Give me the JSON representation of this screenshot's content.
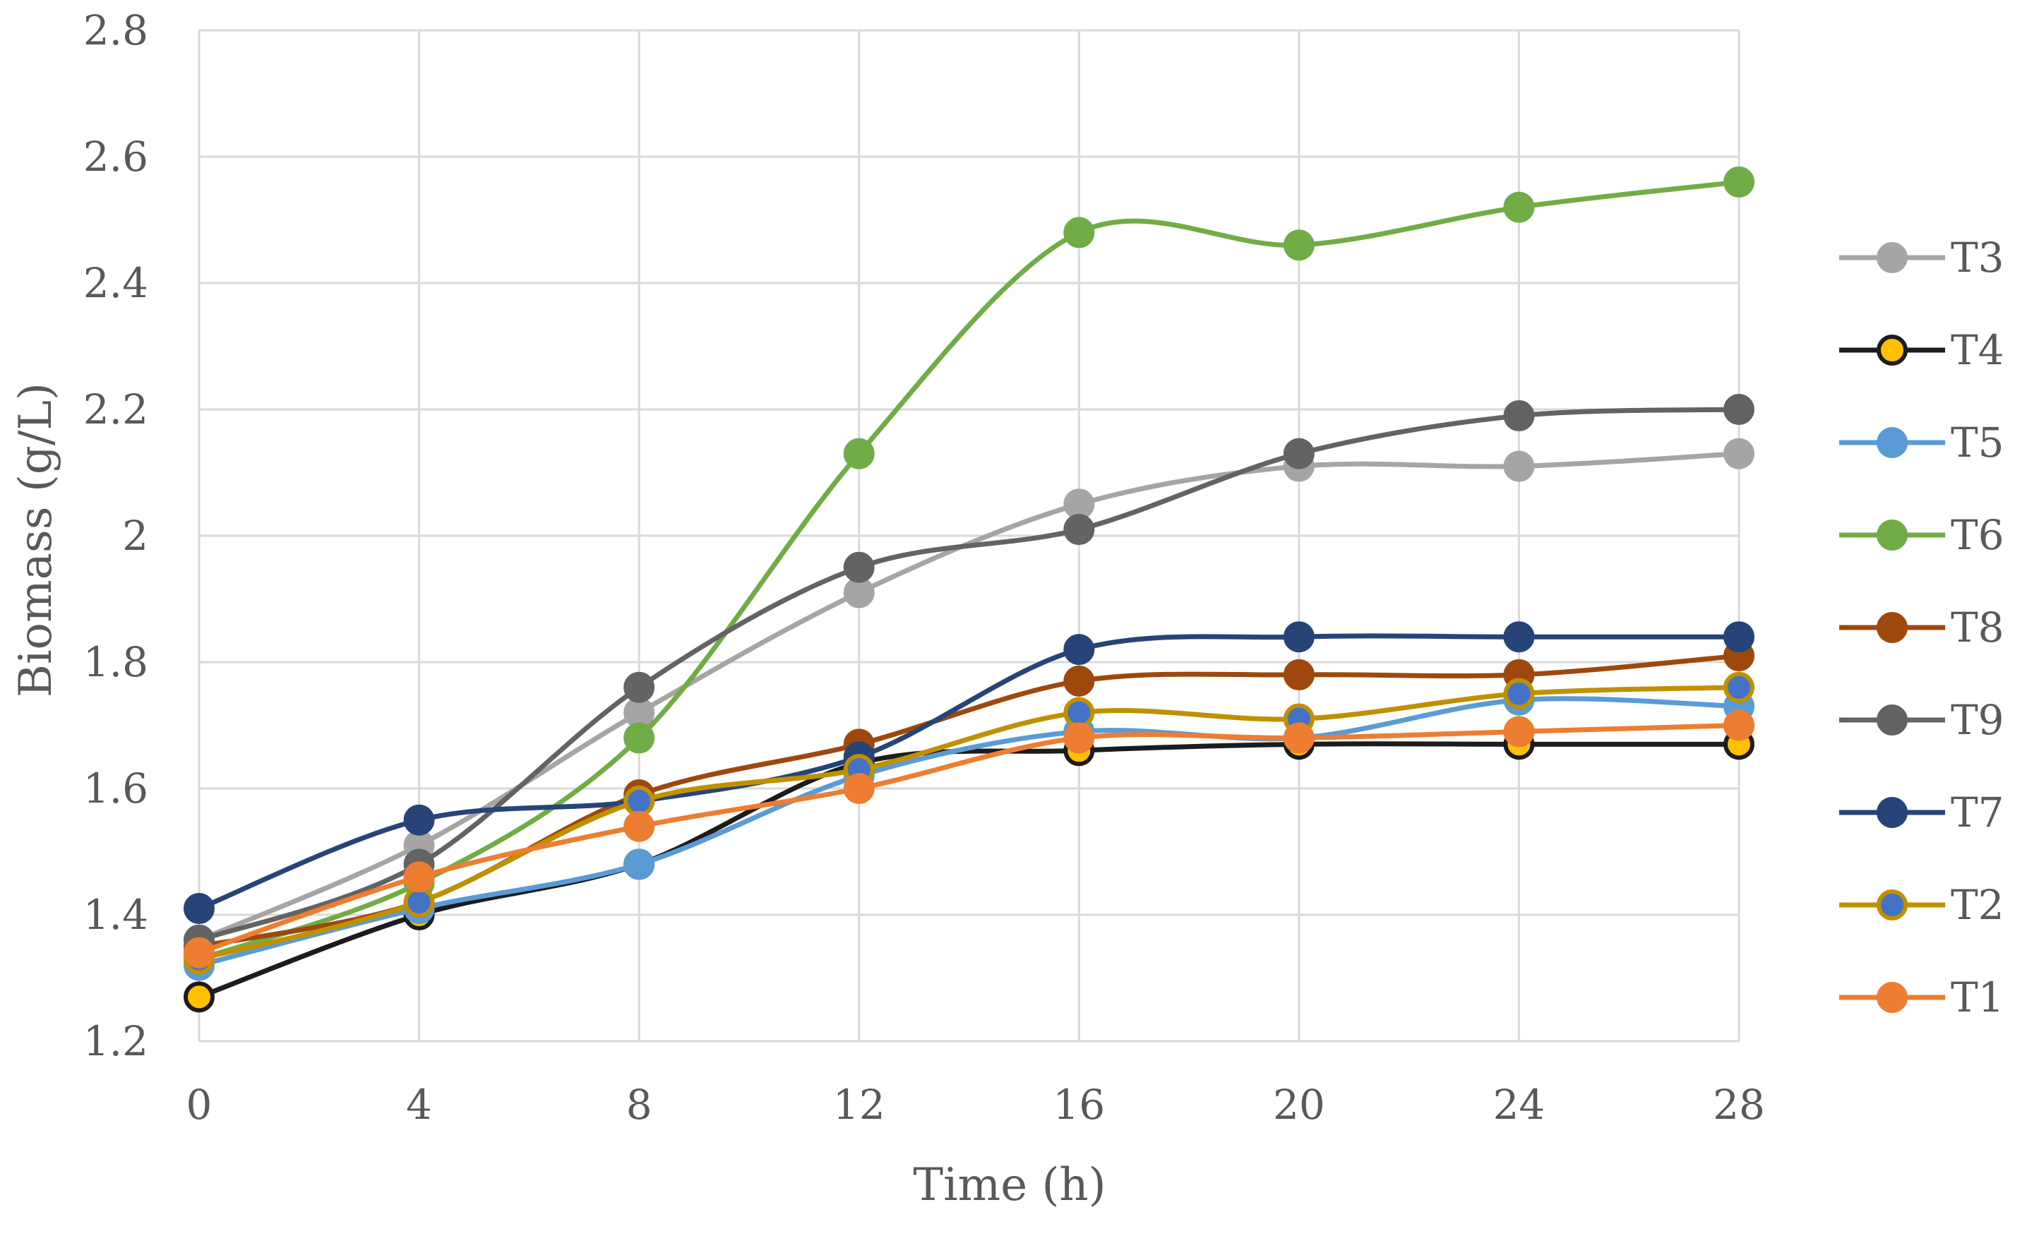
{
  "chart_data": {
    "type": "line",
    "title": "",
    "xlabel": "Time (h)",
    "ylabel": "Biomass (g/L)",
    "x": [
      0,
      4,
      8,
      12,
      16,
      20,
      24,
      28
    ],
    "xlim": [
      0,
      28
    ],
    "ylim": [
      1.2,
      2.8
    ],
    "yticks": [
      1.2,
      1.4,
      1.6,
      1.8,
      2,
      2.2,
      2.4,
      2.6,
      2.8
    ],
    "ytick_labels": [
      "1.2",
      "1.4",
      "1.6",
      "1.8",
      "2",
      "2.2",
      "2.4",
      "2.6",
      "2.8"
    ],
    "xtick_labels": [
      "0",
      "4",
      "8",
      "12",
      "16",
      "20",
      "24",
      "28"
    ],
    "grid": true,
    "smooth": true,
    "legend_position": "right",
    "series": [
      {
        "name": "T3",
        "color": "#a5a5a5",
        "marker": "#a5a5a5",
        "outline": "#a5a5a5",
        "values": [
          1.36,
          1.51,
          1.72,
          1.91,
          2.05,
          2.11,
          2.11,
          2.13
        ]
      },
      {
        "name": "T4",
        "color": "#1c1c1c",
        "marker": "#ffc000",
        "outline": "#1c1c1c",
        "values": [
          1.27,
          1.4,
          1.48,
          1.64,
          1.66,
          1.67,
          1.67,
          1.67
        ]
      },
      {
        "name": "T5",
        "color": "#5b9bd5",
        "marker": "#5b9bd5",
        "outline": "#5b9bd5",
        "values": [
          1.32,
          1.41,
          1.48,
          1.62,
          1.69,
          1.68,
          1.74,
          1.73
        ]
      },
      {
        "name": "T6",
        "color": "#70ad47",
        "marker": "#70ad47",
        "outline": "#70ad47",
        "values": [
          1.33,
          1.45,
          1.68,
          2.13,
          2.48,
          2.46,
          2.52,
          2.56
        ]
      },
      {
        "name": "T8",
        "color": "#9e480e",
        "marker": "#9e480e",
        "outline": "#9e480e",
        "values": [
          1.35,
          1.42,
          1.59,
          1.67,
          1.77,
          1.78,
          1.78,
          1.81
        ]
      },
      {
        "name": "T9",
        "color": "#636363",
        "marker": "#636363",
        "outline": "#636363",
        "values": [
          1.36,
          1.48,
          1.76,
          1.95,
          2.01,
          2.13,
          2.19,
          2.2
        ]
      },
      {
        "name": "T7",
        "color": "#264478",
        "marker": "#264478",
        "outline": "#264478",
        "values": [
          1.41,
          1.55,
          1.58,
          1.65,
          1.82,
          1.84,
          1.84,
          1.84
        ]
      },
      {
        "name": "T2",
        "color": "#bf9000",
        "marker": "#4472c4",
        "outline": "#bf9000",
        "values": [
          1.33,
          1.42,
          1.58,
          1.63,
          1.72,
          1.71,
          1.75,
          1.76
        ]
      },
      {
        "name": "T1",
        "color": "#ed7d31",
        "marker": "#ed7d31",
        "outline": "#ed7d31",
        "values": [
          1.34,
          1.46,
          1.54,
          1.6,
          1.68,
          1.68,
          1.69,
          1.7
        ]
      }
    ]
  }
}
